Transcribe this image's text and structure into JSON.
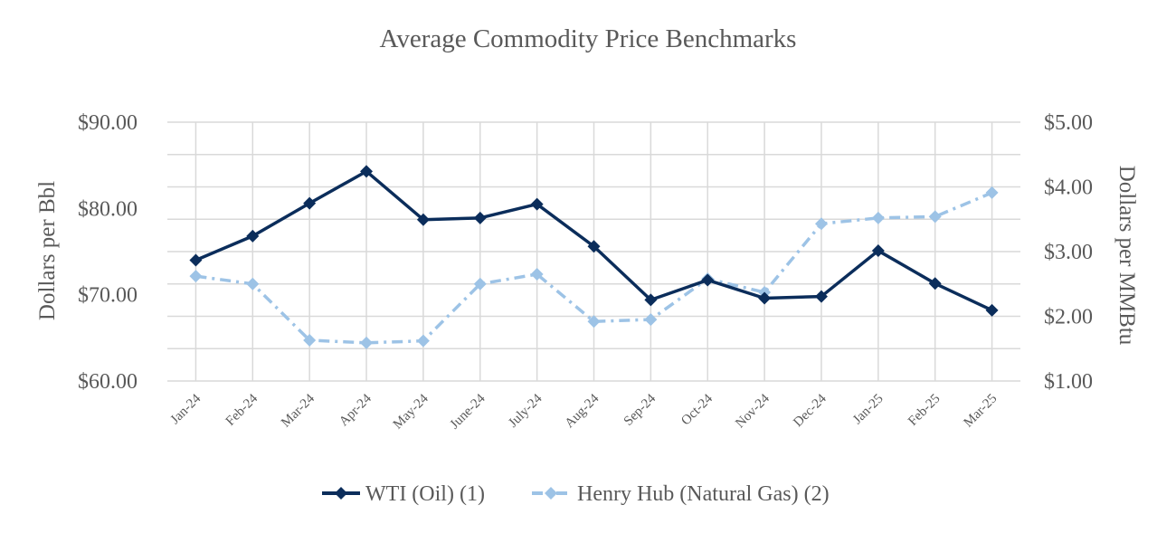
{
  "chart_data": {
    "type": "line",
    "title": "Average Commodity Price Benchmarks",
    "categories": [
      "Jan-24",
      "Feb-24",
      "Mar-24",
      "Apr-24",
      "May-24",
      "June-24",
      "July-24",
      "Aug-24",
      "Sep-24",
      "Oct-24",
      "Nov-24",
      "Dec-24",
      "Jan-25",
      "Feb-25",
      "Mar-25"
    ],
    "series": [
      {
        "name": "WTI (Oil) (1)",
        "axis": "left",
        "color": "#0b2d5b",
        "line_style": "solid",
        "marker": "diamond",
        "values": [
          74.0,
          76.8,
          80.6,
          84.3,
          78.7,
          78.9,
          80.5,
          75.6,
          69.4,
          71.7,
          69.6,
          69.8,
          75.1,
          71.3,
          68.2
        ]
      },
      {
        "name": "Henry Hub (Natural Gas) (2)",
        "axis": "right",
        "color": "#9dc3e6",
        "line_style": "dash-dot",
        "marker": "diamond",
        "values": [
          2.62,
          2.5,
          1.63,
          1.59,
          1.62,
          2.5,
          2.65,
          1.92,
          1.95,
          2.58,
          2.37,
          3.43,
          3.52,
          3.54,
          3.91
        ]
      }
    ],
    "y_left": {
      "label": "Dollars per Bbl",
      "ylim": [
        60,
        90
      ],
      "ticks": [
        "$60.00",
        "$70.00",
        "$80.00",
        "$90.00"
      ],
      "tick_values": [
        60,
        70,
        80,
        90
      ]
    },
    "y_right": {
      "label": "Dollars per MMBtu",
      "ylim": [
        1,
        5
      ],
      "ticks": [
        "$1.00",
        "$2.00",
        "$3.00",
        "$4.00",
        "$5.00"
      ],
      "tick_values": [
        1,
        2,
        3,
        4,
        5
      ]
    },
    "grid": true,
    "legend_position": "bottom"
  }
}
